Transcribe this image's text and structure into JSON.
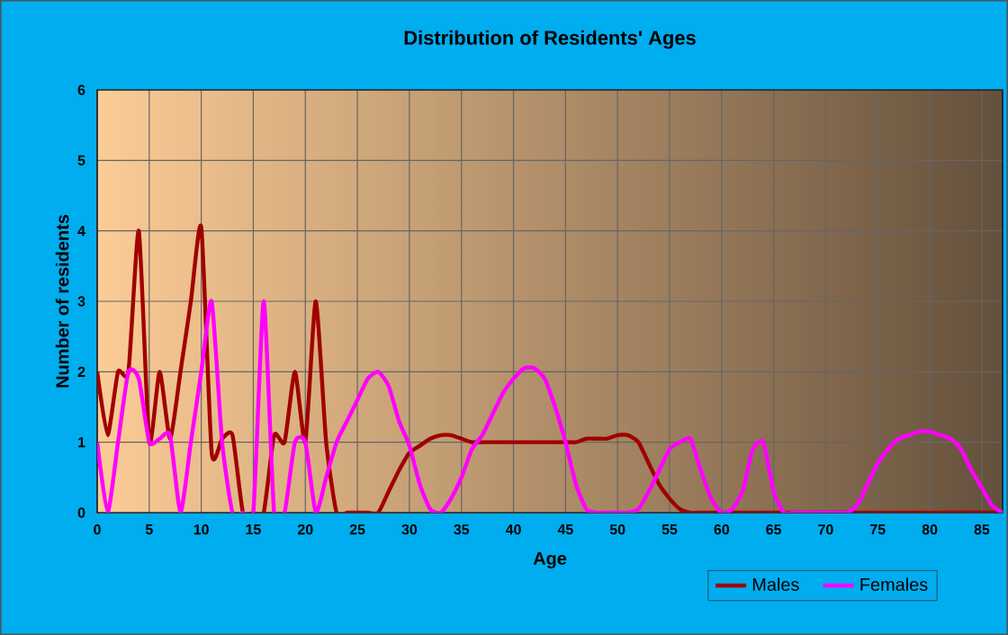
{
  "chart_data": {
    "type": "line",
    "title": "Distribution of Residents' Ages",
    "xlabel": "Age",
    "ylabel": "Number of residents",
    "x": [
      0,
      1,
      2,
      3,
      4,
      5,
      6,
      7,
      8,
      9,
      10,
      11,
      12,
      13,
      14,
      15,
      16,
      17,
      18,
      19,
      20,
      21,
      22,
      23,
      24,
      25,
      26,
      27,
      28,
      29,
      30,
      31,
      32,
      33,
      34,
      35,
      36,
      37,
      38,
      39,
      40,
      41,
      42,
      43,
      44,
      45,
      46,
      47,
      48,
      49,
      50,
      51,
      52,
      53,
      54,
      55,
      56,
      57,
      58,
      59,
      60,
      61,
      62,
      63,
      64,
      65,
      66,
      67,
      68,
      69,
      70,
      71,
      72,
      73,
      74,
      75,
      76,
      77,
      78,
      79,
      80,
      81,
      82,
      83,
      84,
      85,
      86,
      87
    ],
    "series": [
      {
        "name": "Males",
        "color": "#a00000",
        "values": [
          2,
          1.1,
          2,
          2,
          4,
          1,
          2,
          1.05,
          2,
          3,
          4.05,
          0.85,
          1.05,
          1.1,
          0,
          0,
          0,
          1.1,
          1,
          2,
          1,
          3,
          1,
          0,
          0,
          0,
          0,
          0,
          0.3,
          0.6,
          0.85,
          0.95,
          1.05,
          1.1,
          1.1,
          1.05,
          1,
          1,
          1,
          1,
          1,
          1,
          1,
          1,
          1,
          1,
          1,
          1.05,
          1.05,
          1.05,
          1.1,
          1.1,
          1,
          0.7,
          0.4,
          0.2,
          0.05,
          0,
          0,
          0,
          0,
          0,
          0,
          0,
          0,
          0,
          0,
          0,
          0,
          0,
          0,
          0,
          0,
          0,
          0,
          0,
          0,
          0,
          0,
          0,
          0,
          0,
          0,
          0,
          0,
          0,
          0,
          0
        ]
      },
      {
        "name": "Females",
        "color": "#ff00ff",
        "values": [
          1,
          0,
          1,
          2,
          1.9,
          1,
          1.05,
          1.1,
          0,
          1,
          2,
          3,
          1,
          0,
          0,
          0,
          3,
          0,
          0,
          1,
          1,
          0,
          0.5,
          1,
          1.3,
          1.6,
          1.9,
          2,
          1.8,
          1.3,
          0.95,
          0.4,
          0.05,
          0,
          0.2,
          0.5,
          0.9,
          1.1,
          1.4,
          1.7,
          1.9,
          2.05,
          2.05,
          1.9,
          1.5,
          1,
          0.4,
          0.05,
          0,
          0,
          0,
          0,
          0.05,
          0.3,
          0.6,
          0.9,
          1,
          1.05,
          0.6,
          0.2,
          0,
          0.05,
          0.3,
          0.9,
          1,
          0.3,
          0,
          0,
          0,
          0,
          0,
          0,
          0,
          0.1,
          0.4,
          0.7,
          0.9,
          1.05,
          1.1,
          1.15,
          1.15,
          1.1,
          1.05,
          0.9,
          0.6,
          0.35,
          0.1,
          0
        ]
      }
    ],
    "xlim": [
      0,
      87
    ],
    "ylim": [
      0,
      6
    ],
    "xticks": [
      0,
      5,
      10,
      15,
      20,
      25,
      30,
      35,
      40,
      45,
      50,
      55,
      60,
      65,
      70,
      75,
      80,
      85
    ],
    "yticks": [
      0,
      1,
      2,
      3,
      4,
      5,
      6
    ],
    "grid": true,
    "legend": "bottom right",
    "line_style": "solid",
    "marker": "none"
  }
}
